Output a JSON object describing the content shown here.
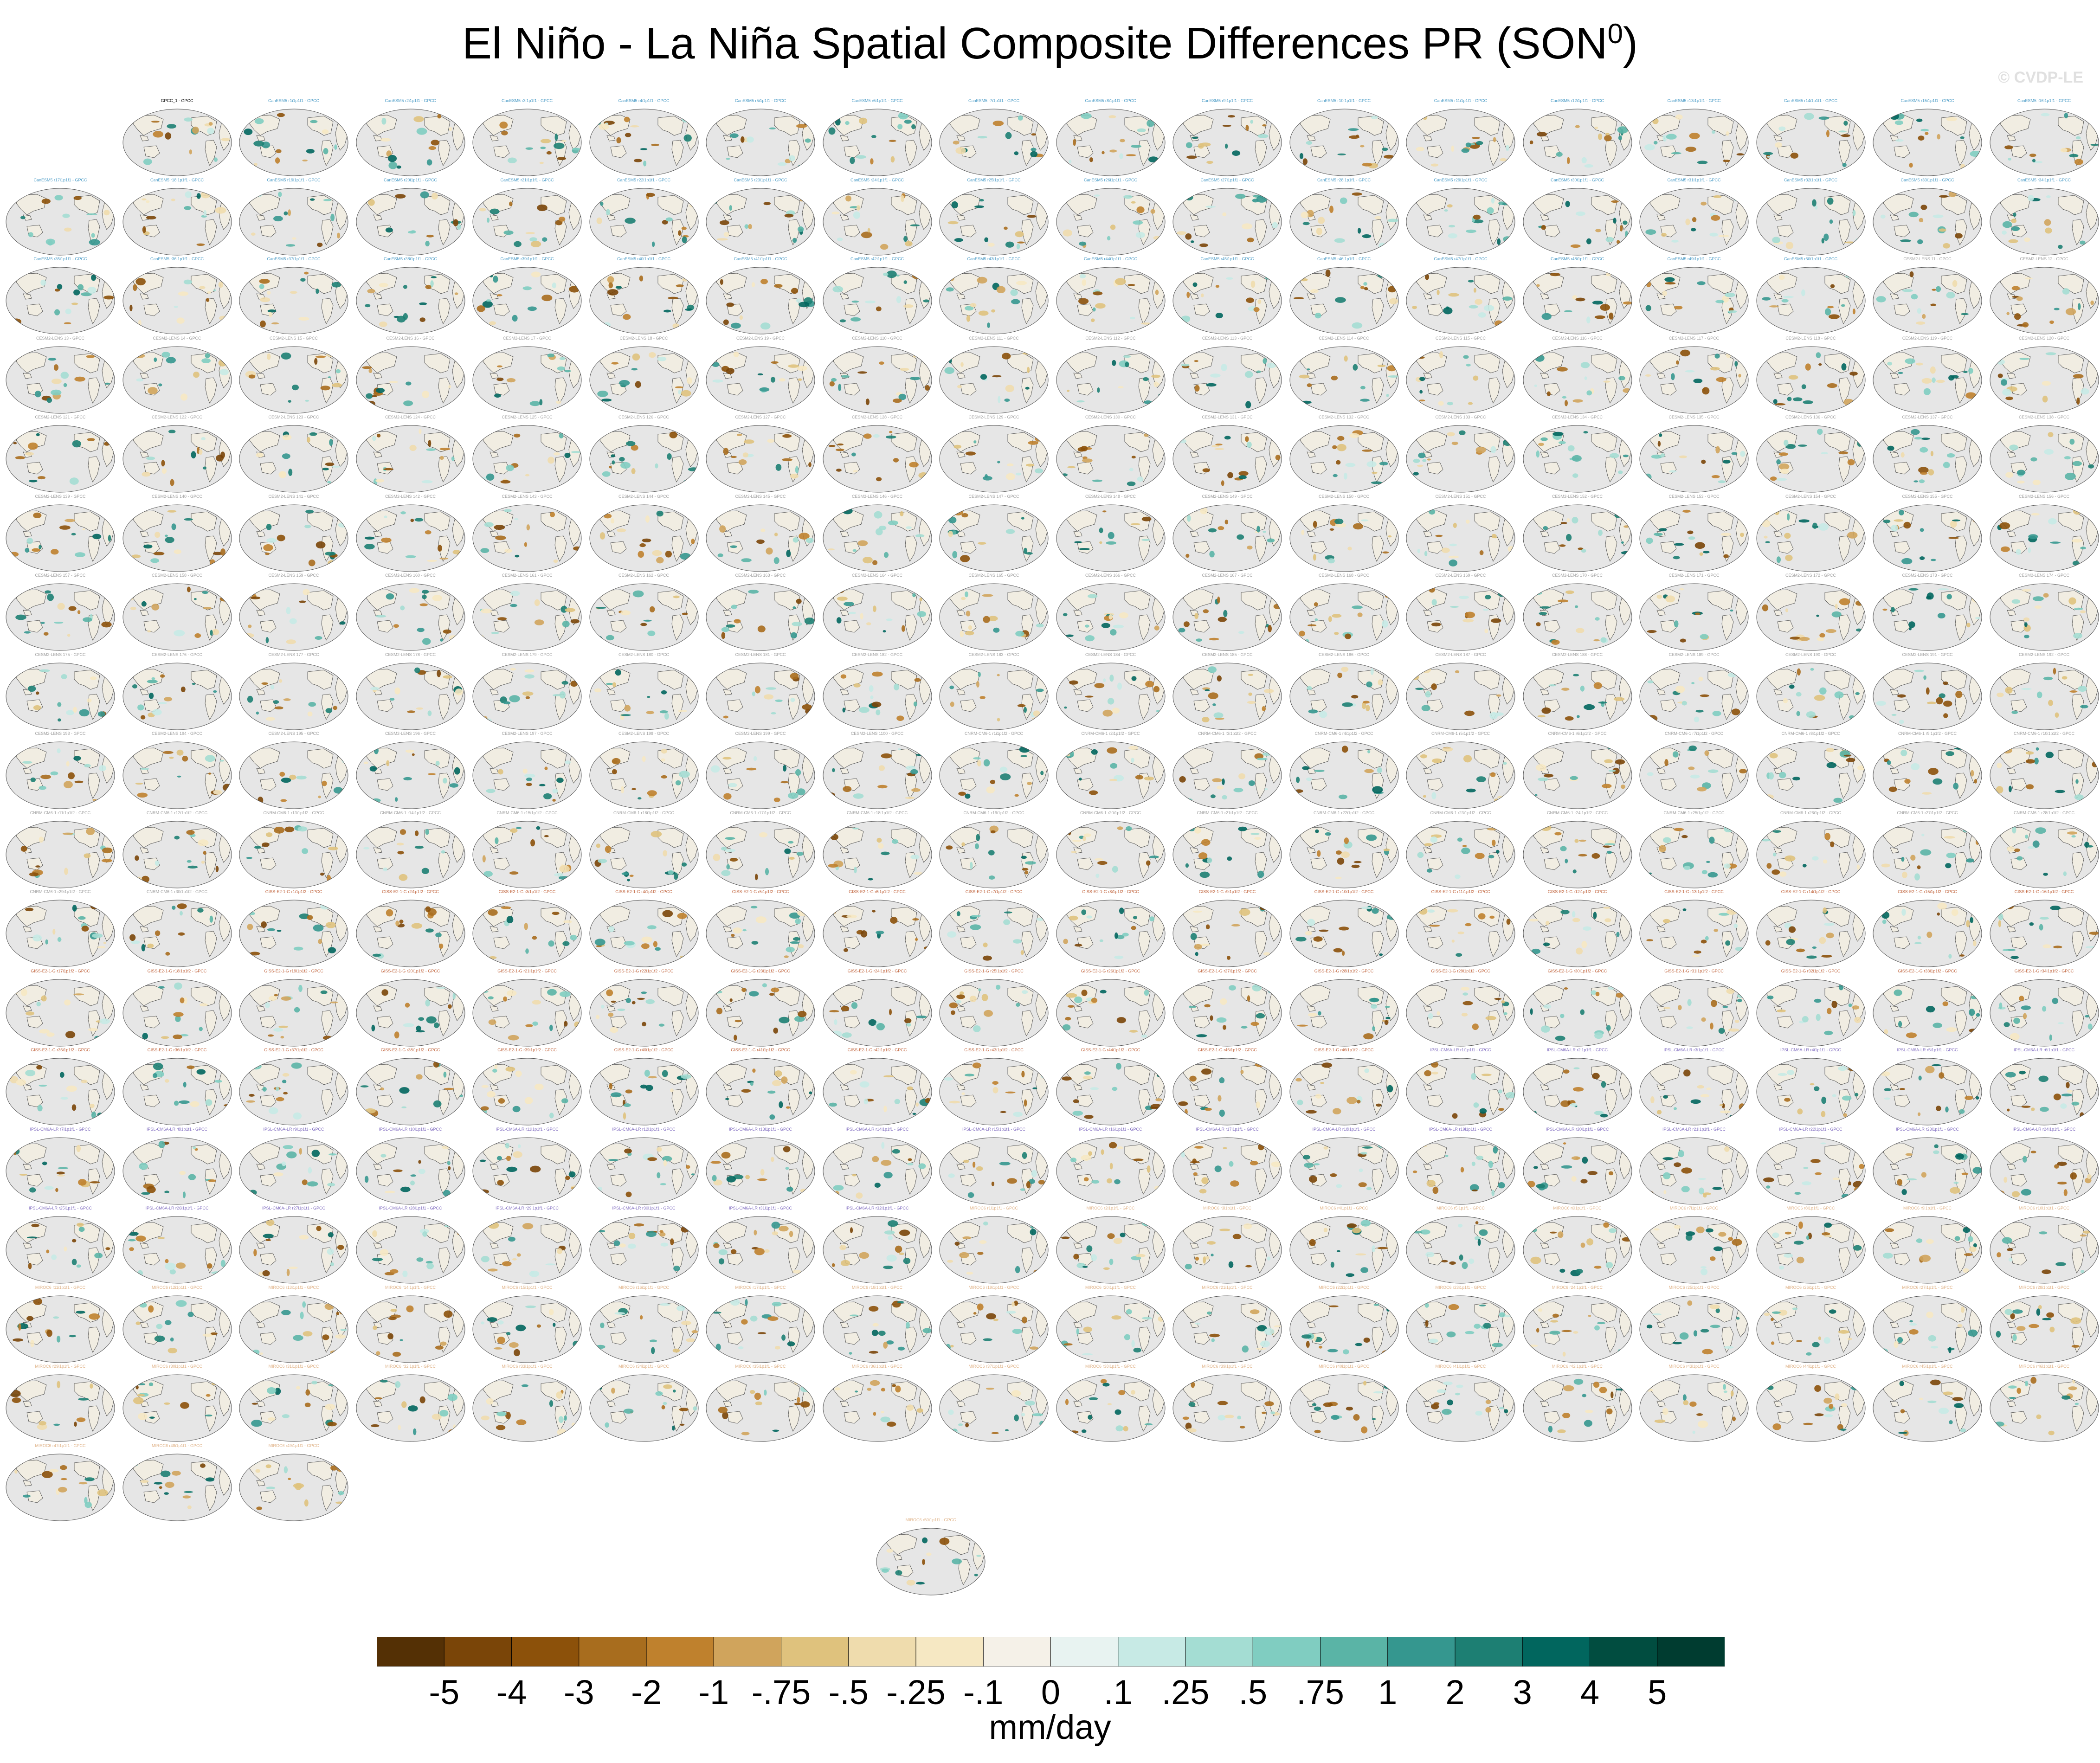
{
  "title": "El Niño - La Niña Spatial Composite Differences PR (SON",
  "title_sup": "0",
  "title_suffix": ")",
  "watermark": "© CVDP-LE",
  "chart_data": {
    "type": "heatmap",
    "description_of_panels": "Small-multiple global maps of precipitation composite difference",
    "panels": {
      "observation": {
        "label": "GPCC_1 - GPCC",
        "color": "#000000"
      },
      "groups": [
        {
          "model": "CanESM5",
          "count": 50,
          "label_template": "CanESM5 r{n}i1p1f1 - GPCC",
          "color": "#4a9bc6"
        },
        {
          "model": "CESM2-LENS",
          "count": 100,
          "label_template": "CESM2-LENS 1{n} - GPCC",
          "color": "#a0a0a0"
        },
        {
          "model": "CNRM-CM6-1",
          "count": 30,
          "label_template": "CNRM-CM6-1 r{n}i1p1f2 - GPCC",
          "color": "#a0a0a0"
        },
        {
          "model": "GISS-E2-1-G",
          "count": 46,
          "label_template": "GISS-E2-1-G r{n}i1p1f2 - GPCC",
          "color": "#c0623a"
        },
        {
          "model": "IPSL-CM6A-LR",
          "count": 32,
          "label_template": "IPSL-CM6A-LR r{n}i1p1f1 - GPCC",
          "color": "#7f6bbf"
        },
        {
          "model": "MIROC6",
          "count": 50,
          "label_template": "MIROC6 r{n}i1p1f1 - GPCC",
          "color": "#e0b48a"
        }
      ]
    },
    "colorbar": {
      "labels": [
        "-5",
        "-4",
        "-3",
        "-2",
        "-1",
        "-.75",
        "-.5",
        "-.25",
        "-.1",
        "0",
        ".1",
        ".25",
        ".5",
        ".75",
        "1",
        "2",
        "3",
        "4",
        "5"
      ],
      "colors": [
        "#543005",
        "#7a4508",
        "#8c510a",
        "#a86d1e",
        "#bf812d",
        "#d0a45c",
        "#dfc27d",
        "#efdcad",
        "#f6e8c3",
        "#f5f1e8",
        "#e8f3f1",
        "#c7eae5",
        "#a4ddd3",
        "#80cdc1",
        "#5ab4a6",
        "#35978f",
        "#1d7f73",
        "#01665e",
        "#014d40",
        "#003c30"
      ],
      "units": "mm/day"
    }
  }
}
